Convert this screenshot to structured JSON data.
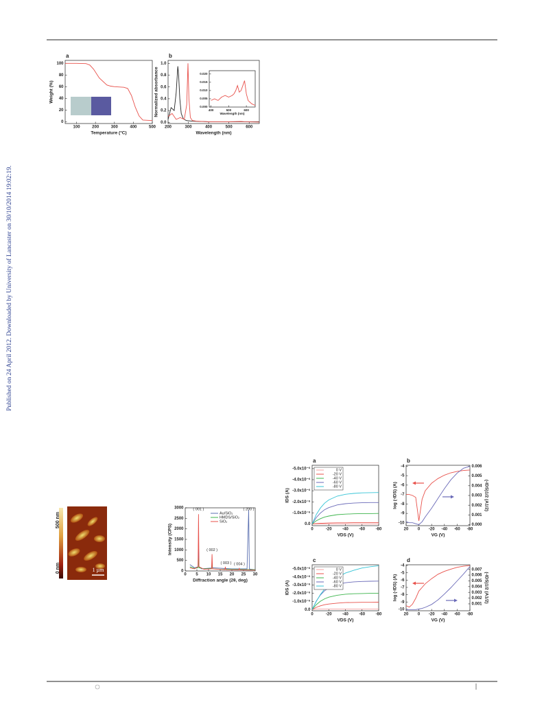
{
  "side_note": "Published on 24 April 2012. Downloaded by University of Lancaster on 30/10/2014 19:02:19.",
  "afm": {
    "colorbar_top": "500 nm",
    "colorbar_bottom": "0 nm",
    "scale_bar": "1 µm"
  },
  "chart_data": [
    {
      "type": "line",
      "label": "a",
      "xlabel": "Temperature (°C)",
      "ylabel": "Weight (%)",
      "xlim": [
        40,
        500
      ],
      "xticks": [
        100,
        200,
        300,
        400,
        500
      ],
      "ylim": [
        -3,
        105
      ],
      "yticks": [
        0,
        20,
        40,
        60,
        80,
        100
      ],
      "series": [
        {
          "color": "#e8504a",
          "x": [
            40,
            100,
            150,
            170,
            190,
            220,
            260,
            280,
            300,
            350,
            370,
            390,
            410,
            430,
            450,
            500
          ],
          "values": [
            100,
            100,
            99.5,
            97,
            90,
            75,
            63,
            61,
            60,
            59,
            57,
            45,
            25,
            10,
            3,
            2
          ]
        }
      ]
    },
    {
      "type": "line",
      "label": "b",
      "xlabel": "Wavelength (nm)",
      "ylabel": "Normalized absorbance",
      "xlim": [
        200,
        650
      ],
      "xticks": [
        200,
        300,
        400,
        500,
        600
      ],
      "ylim": [
        -0.02,
        1.05
      ],
      "yticks": [
        {
          "value": 0,
          "label": "0.0"
        },
        0.2,
        0.4,
        0.6,
        0.8,
        {
          "value": 1,
          "label": "1.0"
        }
      ],
      "series": [
        {
          "color": "#222222",
          "x": [
            200,
            215,
            230,
            240,
            248,
            252,
            258,
            265,
            275,
            290,
            320,
            400,
            650
          ],
          "values": [
            0.05,
            0.25,
            0.2,
            0.5,
            0.95,
            0.8,
            0.4,
            0.15,
            0.06,
            0.03,
            0.02,
            0.01,
            0.01
          ]
        },
        {
          "color": "#e8504a",
          "x": [
            200,
            220,
            240,
            260,
            280,
            292,
            298,
            303,
            310,
            320,
            340,
            400,
            500,
            560,
            580,
            650
          ],
          "values": [
            0.1,
            0.15,
            0.05,
            0.08,
            0.05,
            0.3,
            1.0,
            0.4,
            0.08,
            0.03,
            0.02,
            0.01,
            0.01,
            0.015,
            0.01,
            0.005
          ]
        }
      ]
    },
    {
      "type": "line",
      "xlabel": "Wavelength (nm)",
      "xlim": [
        390,
        650
      ],
      "xticks": [
        400,
        500,
        600
      ],
      "ylim": [
        0,
        0.022
      ],
      "yticks": [
        {
          "value": 0,
          "label": "0.000"
        },
        0.005,
        {
          "value": 0.01,
          "label": "0.010"
        },
        0.015,
        {
          "value": 0.02,
          "label": "0.020"
        }
      ],
      "series": [
        {
          "color": "#e8504a",
          "x": [
            400,
            420,
            440,
            460,
            480,
            500,
            520,
            530,
            540,
            550,
            560,
            570,
            580,
            590,
            600,
            610,
            630,
            650
          ],
          "values": [
            0.004,
            0.005,
            0.004,
            0.006,
            0.007,
            0.006,
            0.007,
            0.008,
            0.01,
            0.013,
            0.009,
            0.01,
            0.013,
            0.016,
            0.008,
            0.004,
            0.002,
            0.001
          ]
        }
      ]
    },
    {
      "type": "line",
      "xlabel": "Diffraction angle (2θ, deg)",
      "ylabel": "Intensity (CPS)",
      "xlim": [
        0,
        30
      ],
      "xticks": [
        0,
        5,
        10,
        15,
        20,
        25,
        30
      ],
      "ylim": [
        0,
        3000
      ],
      "yticks": [
        0,
        500,
        1000,
        1500,
        2000,
        2500,
        3000
      ],
      "annotations": [
        "( 001 )",
        "( 002 )",
        "( 003 )",
        "( 004 )",
        "( 200 )"
      ],
      "series": [
        {
          "name": "Au/SiO₂",
          "color": "#5a6fb0",
          "x": [
            2,
            4,
            5.5,
            5.7,
            5.9,
            7,
            12,
            20,
            26.5,
            27.2,
            27.5,
            28,
            30
          ],
          "values": [
            300,
            150,
            200,
            1300,
            200,
            100,
            150,
            100,
            100,
            2900,
            100,
            80,
            60
          ]
        },
        {
          "name": "HMDS/SiO₂",
          "color": "#3cb44b",
          "x": [
            2,
            4,
            5.5,
            5.7,
            5.9,
            8,
            11.3,
            11.5,
            11.7,
            15,
            30
          ],
          "values": [
            200,
            120,
            150,
            600,
            150,
            100,
            120,
            350,
            100,
            80,
            60
          ]
        },
        {
          "name": "SiO₂",
          "color": "#e8504a",
          "x": [
            2,
            4,
            5.5,
            5.7,
            5.9,
            8,
            11.3,
            11.5,
            11.7,
            17,
            17.2,
            17.4,
            23,
            23.2,
            23.4,
            30
          ],
          "values": [
            150,
            100,
            200,
            2700,
            200,
            80,
            100,
            800,
            100,
            60,
            200,
            60,
            50,
            120,
            50,
            40
          ]
        }
      ]
    },
    {
      "type": "line",
      "label": "a",
      "xlabel": "VDS (V)",
      "ylabel": "IDS (A)",
      "xlim": [
        0,
        -80
      ],
      "xticks": [
        0,
        -20,
        -40,
        -60,
        -80
      ],
      "ylim": [
        1.5e-07,
        -5.3e-06
      ],
      "yticks": [
        {
          "value": -5e-06,
          "label": "-5.0x10⁻⁶"
        },
        {
          "value": -4e-06,
          "label": "-4.0x10⁻⁶"
        },
        {
          "value": -3e-06,
          "label": "-3.0x10⁻⁶"
        },
        {
          "value": -2e-06,
          "label": "-2.0x10⁻⁶"
        },
        {
          "value": -1e-06,
          "label": "-1.0x10⁻⁶"
        },
        {
          "value": 0,
          "label": "0.0"
        }
      ],
      "series": [
        {
          "name": "0 V",
          "color": "#f4a0a0",
          "x": [
            0,
            -5,
            -10,
            -15,
            -20,
            -30,
            -40,
            -50,
            -60,
            -70,
            -80
          ],
          "values": [
            0,
            -1e-08,
            -1e-08,
            -1e-08,
            -1e-08,
            -1e-08,
            -1e-08,
            -1e-08,
            -1e-08,
            -1e-08,
            -1e-08
          ]
        },
        {
          "name": "-20 V",
          "color": "#e8504a",
          "x": [
            0,
            -5,
            -10,
            -15,
            -20,
            -30,
            -40,
            -50,
            -60,
            -70,
            -80
          ],
          "values": [
            0,
            -4e-08,
            -6e-08,
            -8e-08,
            -9e-08,
            -1.1e-07,
            -1.1e-07,
            -1.2e-07,
            -1.2e-07,
            -1.2e-07,
            -1.2e-07
          ]
        },
        {
          "name": "-40 V",
          "color": "#3cb44b",
          "x": [
            0,
            -5,
            -10,
            -15,
            -20,
            -30,
            -40,
            -50,
            -60,
            -70,
            -80
          ],
          "values": [
            0,
            -2.9e-07,
            -4.8e-07,
            -6.3e-07,
            -7.2e-07,
            -8.4e-07,
            -8.9e-07,
            -9.2e-07,
            -9.4e-07,
            -9.4e-07,
            -9.5e-07
          ]
        },
        {
          "name": "-60 V",
          "color": "#6a6ab8",
          "x": [
            0,
            -5,
            -10,
            -15,
            -20,
            -30,
            -40,
            -50,
            -60,
            -70,
            -80
          ],
          "values": [
            0,
            -5.9e-07,
            -9.9e-07,
            -1.29e-06,
            -1.48e-06,
            -1.72e-06,
            -1.83e-06,
            -1.89e-06,
            -1.92e-06,
            -1.94e-06,
            -1.94e-06
          ]
        },
        {
          "name": "-80 V",
          "color": "#33c4d6",
          "x": [
            0,
            -5,
            -10,
            -15,
            -20,
            -30,
            -40,
            -50,
            -60,
            -70,
            -80
          ],
          "values": [
            0,
            -8.6e-07,
            -1.45e-06,
            -1.88e-06,
            -2.17e-06,
            -2.51e-06,
            -2.68e-06,
            -2.76e-06,
            -2.81e-06,
            -2.83e-06,
            -2.84e-06
          ]
        }
      ]
    },
    {
      "type": "line",
      "label": "b",
      "xlabel": "VG (V)",
      "ylabel": "log (-IDS) (A)",
      "y2label": "(-IDS)1/2 (A1/2)",
      "xlim": [
        20,
        -80
      ],
      "xticks": [
        20,
        0,
        -20,
        -40,
        -60,
        -80
      ],
      "ylim": [
        -10.3,
        -3.9
      ],
      "yticks": [
        -4,
        -5,
        -6,
        -7,
        -8,
        -9,
        -10
      ],
      "y2lim": [
        -0.0001,
        0.0061
      ],
      "y2ticks": [
        {
          "value": 0,
          "label": "0.000"
        },
        0.001,
        0.002,
        0.003,
        0.004,
        0.005,
        0.006
      ],
      "series": [
        {
          "color": "#e8504a",
          "x": [
            20,
            15,
            10,
            5,
            0,
            -5,
            -10,
            -20,
            -30,
            -40,
            -50,
            -60,
            -70,
            -80
          ],
          "values": [
            -7,
            -7,
            -7.1,
            -7.3,
            -9.8,
            -7.5,
            -6.6,
            -5.8,
            -5.3,
            -4.95,
            -4.7,
            -4.55,
            -4.45,
            -4.4
          ]
        },
        {
          "color": "#6a6ab8",
          "axis": "y2",
          "x": [
            20,
            15,
            10,
            5,
            0,
            -5,
            -10,
            -20,
            -30,
            -40,
            -50,
            -60,
            -70,
            -80
          ],
          "values": [
            0.0003,
            0.0002,
            0.0002,
            0.0001,
            0,
            0.0003,
            0.0008,
            0.0017,
            0.0027,
            0.0037,
            0.0046,
            0.0053,
            0.0058,
            0.006
          ]
        }
      ]
    },
    {
      "type": "line",
      "label": "c",
      "xlabel": "VDS (V)",
      "ylabel": "IDS (A)",
      "xlim": [
        0,
        -80
      ],
      "xticks": [
        0,
        -20,
        -40,
        -60,
        -80
      ],
      "ylim": [
        1.5e-07,
        -5.5e-06
      ],
      "yticks": [
        {
          "value": -5e-06,
          "label": "-5.0x10⁻⁶"
        },
        {
          "value": -4e-06,
          "label": "-4.0x10⁻⁶"
        },
        {
          "value": -3e-06,
          "label": "-3.0x10⁻⁶"
        },
        {
          "value": -2e-06,
          "label": "-2.0x10⁻⁶"
        },
        {
          "value": -1e-06,
          "label": "-1.0x10⁻⁶"
        },
        {
          "value": 0,
          "label": "0.0"
        }
      ],
      "series": [
        {
          "name": "0 V",
          "color": "#f4a0a0",
          "x": [
            0,
            -5,
            -10,
            -15,
            -20,
            -30,
            -40,
            -50,
            -60,
            -70,
            -80
          ],
          "values": [
            0,
            -5e-08,
            -5e-08,
            -5e-08,
            -5e-08,
            -5e-08,
            -5e-08,
            -5e-08,
            -5e-08,
            -5e-08,
            -5e-08
          ]
        },
        {
          "name": "-20 V",
          "color": "#e8504a",
          "x": [
            0,
            -5,
            -10,
            -15,
            -20,
            -30,
            -40,
            -50,
            -60,
            -70,
            -80
          ],
          "values": [
            0,
            -2.7e-07,
            -4.6e-07,
            -5.9e-07,
            -6.8e-07,
            -7.9e-07,
            -8.5e-07,
            -8.7e-07,
            -8.9e-07,
            -8.9e-07,
            -9e-07
          ]
        },
        {
          "name": "-40 V",
          "color": "#3cb44b",
          "x": [
            0,
            -5,
            -10,
            -15,
            -20,
            -30,
            -40,
            -50,
            -60,
            -70,
            -80
          ],
          "values": [
            0,
            -6e-07,
            -1.02e-06,
            -1.32e-06,
            -1.52e-06,
            -1.76e-06,
            -1.88e-06,
            -1.94e-06,
            -1.97e-06,
            -1.99e-06,
            -1.99e-06
          ]
        },
        {
          "name": "-60 V",
          "color": "#6a6ab8",
          "x": [
            0,
            -5,
            -10,
            -15,
            -20,
            -30,
            -40,
            -50,
            -60,
            -70,
            -80
          ],
          "values": [
            0,
            -1.05e-06,
            -1.79e-06,
            -2.31e-06,
            -2.66e-06,
            -3.08e-06,
            -3.29e-06,
            -3.4e-06,
            -3.45e-06,
            -3.48e-06,
            -3.49e-06
          ]
        },
        {
          "name": "-80 V",
          "color": "#33c4d6",
          "x": [
            0,
            -5,
            -10,
            -15,
            -20,
            -30,
            -40,
            -50,
            -60,
            -70,
            -80
          ],
          "values": [
            0,
            -1e-06,
            -1.85e-06,
            -2.52e-06,
            -3.08e-06,
            -3.92e-06,
            -4.48e-06,
            -4.82e-06,
            -5.1e-06,
            -5.26e-06,
            -5.38e-06
          ]
        }
      ]
    },
    {
      "type": "line",
      "label": "d",
      "xlabel": "VG (V)",
      "ylabel": "log (-IDS) (A)",
      "y2label": "(-IDS)1/2 (A1/2)",
      "xlim": [
        20,
        -80
      ],
      "xticks": [
        20,
        0,
        -20,
        -40,
        -60,
        -80
      ],
      "ylim": [
        -10.2,
        -3.9
      ],
      "yticks": [
        -4,
        -5,
        -6,
        -7,
        -8,
        -9,
        -10
      ],
      "y2lim": [
        -0.0002,
        0.0078
      ],
      "y2ticks": [
        0.001,
        0.002,
        0.003,
        0.004,
        0.005,
        0.006,
        0.007
      ],
      "series": [
        {
          "color": "#e8504a",
          "x": [
            20,
            15,
            10,
            5,
            0,
            -5,
            -10,
            -20,
            -30,
            -40,
            -50,
            -60,
            -70,
            -80
          ],
          "values": [
            -9.5,
            -9.7,
            -9.3,
            -8.5,
            -7.5,
            -7.0,
            -6.5,
            -5.8,
            -5.2,
            -4.8,
            -4.5,
            -4.25,
            -4.1,
            -4.0
          ]
        },
        {
          "color": "#6a6ab8",
          "axis": "y2",
          "x": [
            20,
            15,
            10,
            5,
            0,
            -5,
            -10,
            -20,
            -30,
            -40,
            -50,
            -60,
            -70,
            -80
          ],
          "values": [
            0,
            0,
            0,
            0,
            0.0001,
            0.0002,
            0.0004,
            0.0009,
            0.0017,
            0.0027,
            0.0038,
            0.005,
            0.0062,
            0.0075
          ]
        }
      ]
    }
  ]
}
